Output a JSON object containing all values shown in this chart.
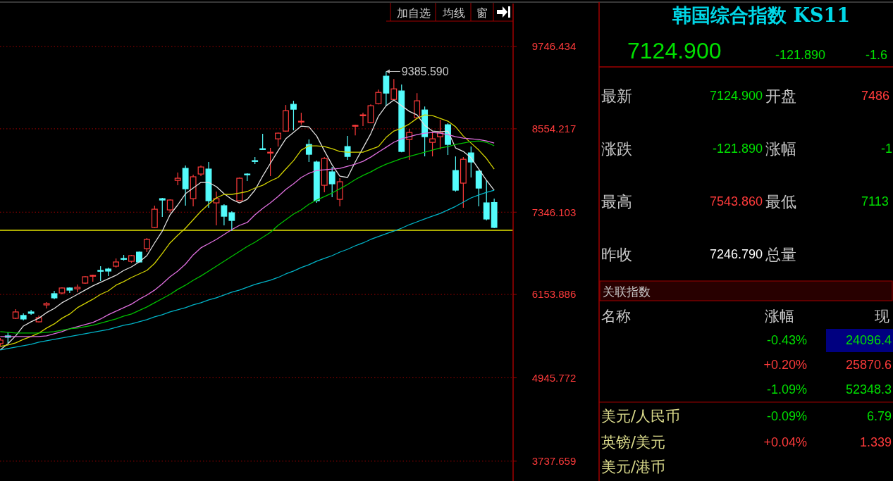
{
  "chart_data": [
    {
      "type": "candlestick",
      "categories": [
        null,
        null,
        null,
        null,
        null,
        null,
        null,
        null,
        null,
        null,
        null,
        null,
        null,
        null,
        null,
        null,
        null,
        null,
        null,
        null,
        null,
        null,
        null,
        null,
        null,
        null,
        null,
        null,
        null,
        null,
        null,
        null,
        null,
        null,
        null,
        null,
        null,
        null,
        null,
        null,
        null,
        null,
        null,
        null,
        null,
        null,
        null,
        null,
        null,
        null,
        null,
        null,
        null,
        null,
        null,
        null,
        null,
        null,
        null,
        null,
        null,
        null,
        null,
        null,
        null
      ],
      "ohlc": [
        [
          5441,
          5523,
          5400,
          5492
        ],
        [
          5553,
          5604,
          5451,
          5533
        ],
        [
          5808,
          5941,
          5798,
          5900
        ],
        [
          5849,
          5880,
          5778,
          5798
        ],
        [
          5900,
          5931,
          5859,
          5880
        ],
        [
          5757,
          5849,
          5747,
          5818
        ],
        [
          6002,
          6043,
          5951,
          6022
        ],
        [
          6165,
          6206,
          6083,
          6104
        ],
        [
          6175,
          6257,
          6155,
          6247
        ],
        [
          6247,
          6257,
          6175,
          6216
        ],
        [
          6236,
          6298,
          6185,
          6257
        ],
        [
          6318,
          6420,
          6308,
          6410
        ],
        [
          6420,
          6441,
          6339,
          6430
        ],
        [
          6502,
          6563,
          6349,
          6492
        ],
        [
          6522,
          6543,
          6420,
          6492
        ],
        [
          6563,
          6675,
          6543,
          6624
        ],
        [
          6675,
          6726,
          6645,
          6665
        ],
        [
          6634,
          6726,
          6614,
          6716
        ],
        [
          6767,
          6777,
          6614,
          6624
        ],
        [
          6818,
          6971,
          6767,
          6951
        ],
        [
          7124,
          7440,
          7114,
          7389
        ],
        [
          7542,
          7553,
          7277,
          7522
        ],
        [
          7379,
          7532,
          7338,
          7522
        ],
        [
          7807,
          7920,
          7736,
          7838
        ],
        [
          7981,
          8022,
          7440,
          7685
        ],
        [
          7542,
          7889,
          7430,
          7859
        ],
        [
          7899,
          8022,
          7869,
          8001
        ],
        [
          7971,
          8073,
          7410,
          7512
        ],
        [
          7481,
          7644,
          7155,
          7542
        ],
        [
          7440,
          7461,
          7155,
          7287
        ],
        [
          7338,
          7359,
          7073,
          7226
        ],
        [
          7512,
          7848,
          7501,
          7838
        ],
        [
          7899,
          7909,
          7797,
          7889
        ],
        [
          8093,
          8144,
          8042,
          8083
        ],
        [
          8266,
          8481,
          8246,
          8256
        ],
        [
          8205,
          8277,
          7869,
          8215
        ],
        [
          8409,
          8501,
          8297,
          8491
        ],
        [
          8521,
          8899,
          8511,
          8817
        ],
        [
          8909,
          8960,
          8532,
          8838
        ],
        [
          8654,
          8787,
          8613,
          8664
        ],
        [
          8328,
          8399,
          8073,
          8185
        ],
        [
          8073,
          8093,
          7481,
          7512
        ],
        [
          7736,
          8144,
          7634,
          8124
        ],
        [
          7930,
          8001,
          7563,
          7757
        ],
        [
          7532,
          7838,
          7430,
          7787
        ],
        [
          8297,
          8450,
          8103,
          8154
        ],
        [
          8594,
          8613,
          8460,
          8604
        ],
        [
          8746,
          8787,
          8594,
          8756
        ],
        [
          8644,
          8909,
          8634,
          8889
        ],
        [
          8919,
          9123,
          8909,
          9082
        ],
        [
          9317,
          9385.59,
          8889,
          9072
        ],
        [
          8980,
          9276,
          8970,
          9133
        ],
        [
          9103,
          9195,
          8215,
          8226
        ],
        [
          8399,
          8552,
          8103,
          8501
        ],
        [
          8715,
          9072,
          8705,
          8960
        ],
        [
          8827,
          8878,
          8154,
          8440
        ],
        [
          8358,
          8511,
          8154,
          8409
        ],
        [
          8440,
          8685,
          8256,
          8501
        ],
        [
          8613,
          8634,
          8175,
          8328
        ],
        [
          7950,
          8154,
          7644,
          7665
        ],
        [
          7767,
          8144,
          7410,
          8113
        ],
        [
          8205,
          8297,
          7848,
          8073
        ],
        [
          7940,
          7950,
          7430,
          7695
        ],
        [
          7481,
          7807,
          7226,
          7246.79
        ],
        [
          7486,
          7543.86,
          7113,
          7124.9
        ]
      ],
      "series": [
        {
          "type": "line",
          "color": "#e0e0e0",
          "values": [
            5350,
            5441,
            5554,
            5696,
            5758,
            5809,
            5890,
            5951,
            6033,
            6094,
            6155,
            6217,
            6278,
            6329,
            6380,
            6431,
            6502,
            6553,
            6625,
            6716,
            6900,
            7073,
            7308,
            7451,
            7614,
            7696,
            7777,
            7777,
            7716,
            7614,
            7532,
            7481,
            7532,
            7665,
            7869,
            8053,
            8236,
            8410,
            8501,
            8593,
            8583,
            8450,
            8236,
            8032,
            7869,
            7849,
            8073,
            8277,
            8481,
            8736,
            8889,
            8971,
            8889,
            8807,
            8756,
            8603,
            8522,
            8512,
            8522,
            8277,
            8226,
            8134,
            7971,
            7808,
            7665
          ]
        },
        {
          "type": "line",
          "color": "#d2d200",
          "values": [
            5401,
            5421,
            5452,
            5503,
            5543,
            5594,
            5666,
            5727,
            5809,
            5870,
            5962,
            6023,
            6084,
            6155,
            6206,
            6288,
            6339,
            6400,
            6451,
            6502,
            6604,
            6747,
            6900,
            7012,
            7114,
            7237,
            7359,
            7461,
            7553,
            7604,
            7604,
            7624,
            7645,
            7696,
            7736,
            7798,
            7849,
            7971,
            8093,
            8246,
            8308,
            8308,
            8297,
            8267,
            8226,
            8216,
            8216,
            8216,
            8257,
            8297,
            8430,
            8522,
            8563,
            8624,
            8705,
            8756,
            8746,
            8705,
            8665,
            8583,
            8450,
            8348,
            8246,
            8124,
            7971
          ]
        },
        {
          "type": "line",
          "color": "#e070e0",
          "values": [
            5543,
            5543,
            5543,
            5543,
            5543,
            5543,
            5554,
            5584,
            5615,
            5656,
            5686,
            5717,
            5747,
            5798,
            5860,
            5911,
            5962,
            6013,
            6084,
            6145,
            6217,
            6308,
            6410,
            6492,
            6594,
            6727,
            6829,
            6890,
            6951,
            7022,
            7094,
            7155,
            7196,
            7308,
            7400,
            7481,
            7573,
            7675,
            7757,
            7849,
            7910,
            7951,
            7961,
            7971,
            7981,
            8012,
            8042,
            8083,
            8144,
            8216,
            8287,
            8359,
            8410,
            8440,
            8471,
            8491,
            8501,
            8491,
            8471,
            8440,
            8420,
            8410,
            8399,
            8379,
            8348
          ]
        },
        {
          "type": "line",
          "color": "#00c000",
          "values": [
            5615,
            5605,
            5594,
            5594,
            5594,
            5594,
            5605,
            5615,
            5635,
            5656,
            5666,
            5686,
            5707,
            5737,
            5768,
            5798,
            5839,
            5870,
            5921,
            5972,
            6033,
            6094,
            6155,
            6227,
            6288,
            6359,
            6421,
            6492,
            6563,
            6635,
            6706,
            6778,
            6849,
            6910,
            6982,
            7053,
            7155,
            7237,
            7318,
            7379,
            7461,
            7522,
            7573,
            7624,
            7685,
            7747,
            7818,
            7879,
            7930,
            7991,
            8042,
            8083,
            8124,
            8155,
            8185,
            8216,
            8246,
            8277,
            8297,
            8328,
            8348,
            8369,
            8379,
            8359,
            8308
          ]
        },
        {
          "type": "line",
          "color": "#00b4c8",
          "values": [
            5350,
            5370,
            5390,
            5411,
            5431,
            5462,
            5482,
            5503,
            5523,
            5543,
            5564,
            5584,
            5605,
            5625,
            5645,
            5676,
            5707,
            5727,
            5758,
            5788,
            5829,
            5860,
            5900,
            5931,
            5962,
            6002,
            6033,
            6074,
            6104,
            6145,
            6186,
            6217,
            6257,
            6298,
            6329,
            6359,
            6400,
            6451,
            6492,
            6543,
            6584,
            6635,
            6676,
            6716,
            6767,
            6808,
            6859,
            6900,
            6951,
            6992,
            7033,
            7073,
            7114,
            7165,
            7206,
            7247,
            7288,
            7328,
            7379,
            7430,
            7492,
            7553,
            7594,
            7634,
            7665
          ]
        }
      ],
      "ylim": [
        3450,
        10370
      ],
      "yticks": [
        3737.659,
        4945.772,
        6153.886,
        7346.103,
        8554.217,
        9746.434
      ],
      "grid": "y",
      "tick_labels": "y",
      "ref_lines": [
        {
          "axis": "y",
          "value": 7084,
          "color": "#e6e600"
        }
      ],
      "annotations": [
        "9385.590",
        "加自选",
        "均线",
        "窗"
      ]
    },
    {
      "type": "other",
      "title": "韩国综合指数 KS11",
      "annotations": [
        "7124.900",
        "-121.890",
        "-1.6",
        "最新",
        "7124.900",
        "开盘",
        "7486",
        "涨跌",
        "-121.890",
        "涨幅",
        "-1",
        "最高",
        "7543.860",
        "最低",
        "7113",
        "昨收",
        "7246.790",
        "总量",
        "关联指数",
        "名称",
        "涨幅",
        "现",
        "-0.43%",
        "24096.4",
        "+0.20%",
        "25870.6",
        "-1.09%",
        "52348.3",
        "美元/人民币",
        "-0.09%",
        "6.79",
        "英镑/美元",
        "+0.04%",
        "1.339",
        "美元/港币"
      ]
    }
  ]
}
